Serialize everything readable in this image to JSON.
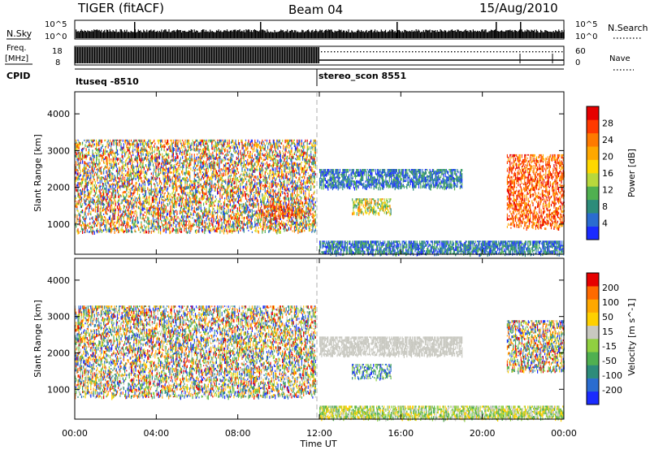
{
  "header": {
    "title": "TIGER (fitACF)",
    "beam": "Beam 04",
    "date": "15/Aug/2010"
  },
  "strips": {
    "nsky_label": "N.Sky",
    "nsky_ticks": [
      "10^5",
      "10^0"
    ],
    "nsearch_label": "N.Search",
    "freq_label_1": "Freq.",
    "freq_label_2": "[MHz]",
    "freq_ticks": [
      "18",
      "8"
    ],
    "nave_ticks": [
      "60",
      "0"
    ],
    "nave_label": "Nave",
    "cpid_label": "CPID",
    "cpid_segments": [
      {
        "label": "ltuseq -8510",
        "start_h": 0,
        "end_h": 12
      },
      {
        "label": "stereo_scon 8551",
        "start_h": 12,
        "end_h": 24
      }
    ]
  },
  "chart_data": [
    {
      "type": "heatmap",
      "title": "",
      "xlabel": "",
      "ylabel": "Slant Range [km]",
      "xlim": [
        0,
        24
      ],
      "ylim": [
        180,
        4600
      ],
      "yticks": [
        1000,
        2000,
        3000,
        4000
      ],
      "colorbar": {
        "label": "Power [dB]",
        "ticks": [
          "4",
          "8",
          "12",
          "16",
          "20",
          "24",
          "28"
        ],
        "colors": [
          "#1a2bff",
          "#2a6cd0",
          "#2d8c7a",
          "#50b050",
          "#b8d83c",
          "#ffd800",
          "#ffa800",
          "#ff7a00",
          "#ff3a00",
          "#e60000"
        ]
      },
      "echo_regions": [
        {
          "start_h": 0.0,
          "end_h": 11.8,
          "range_km": [
            800,
            3300
          ],
          "level": "mixed"
        },
        {
          "start_h": 9.0,
          "end_h": 11.2,
          "range_km": [
            1200,
            1500
          ],
          "level": "high"
        },
        {
          "start_h": 12.0,
          "end_h": 19.0,
          "range_km": [
            2000,
            2500
          ],
          "level": "low"
        },
        {
          "start_h": 13.6,
          "end_h": 15.5,
          "range_km": [
            1300,
            1700
          ],
          "level": "medium"
        },
        {
          "start_h": 12.0,
          "end_h": 24.0,
          "range_km": [
            200,
            550
          ],
          "level": "low"
        },
        {
          "start_h": 21.2,
          "end_h": 24.0,
          "range_km": [
            900,
            2900
          ],
          "level": "high"
        }
      ]
    },
    {
      "type": "heatmap",
      "title": "",
      "xlabel": "Time UT",
      "ylabel": "Slant Range [km]",
      "xlim": [
        0,
        24
      ],
      "ylim": [
        180,
        4600
      ],
      "xticks": [
        "00:00",
        "04:00",
        "08:00",
        "12:00",
        "16:00",
        "20:00",
        "00:00"
      ],
      "yticks": [
        1000,
        2000,
        3000,
        4000
      ],
      "colorbar": {
        "label": "Velocity [m s^-1]",
        "ticks": [
          "200",
          "100",
          "50",
          "15",
          "-15",
          "-50",
          "-100",
          "-200"
        ],
        "colors": [
          "#1a2bff",
          "#2a6cd0",
          "#2d8c7a",
          "#50b050",
          "#90d040",
          "#c8c8c0",
          "#ffd000",
          "#ffa800",
          "#ff6a00",
          "#e60000"
        ]
      },
      "echo_regions": [
        {
          "start_h": 0.0,
          "end_h": 11.8,
          "range_km": [
            800,
            3300
          ],
          "level": "mixed"
        },
        {
          "start_h": 12.0,
          "end_h": 19.0,
          "range_km": [
            1950,
            2450
          ],
          "level": "near-zero"
        },
        {
          "start_h": 13.6,
          "end_h": 15.5,
          "range_km": [
            1300,
            1700
          ],
          "level": "toward"
        },
        {
          "start_h": 12.0,
          "end_h": 24.0,
          "range_km": [
            200,
            550
          ],
          "level": "slow"
        },
        {
          "start_h": 21.2,
          "end_h": 24.0,
          "range_km": [
            1500,
            2900
          ],
          "level": "mixed"
        }
      ]
    }
  ]
}
